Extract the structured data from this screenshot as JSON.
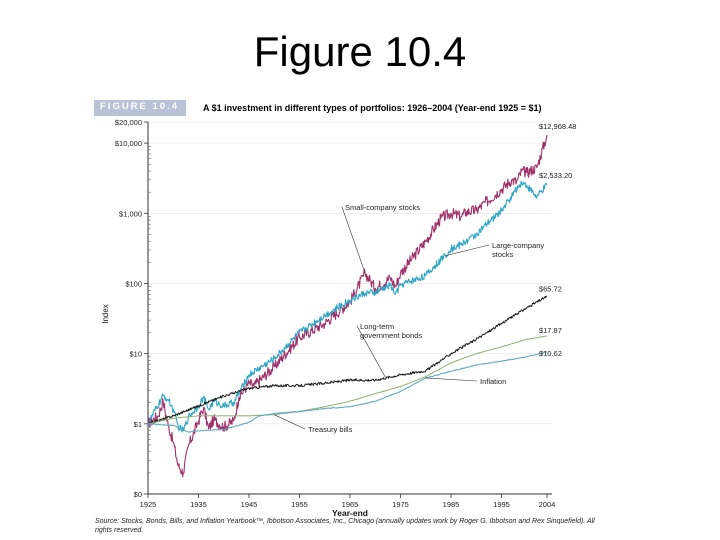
{
  "slide": {
    "title": "Figure 10.4"
  },
  "figure": {
    "label": "FIGURE 10.4",
    "caption": "A $1 investment in different types of portfolios: 1926–2004 (Year-end 1925 = $1)",
    "source": "Source: Stocks, Bonds, Bills, and Inflation Yearbook™, Ibbotson Associates, Inc., Chicago (annually updates work by Roger G. Ibbotson and Rex Sinquefield). All rights reserved."
  },
  "colors": {
    "small_company": "#a0306a",
    "large_company": "#2ea6c8",
    "lt_gov_bonds": "#1a1a1a",
    "inflation": "#5aa8c0",
    "treasury_bills": "#8fb070"
  },
  "chart_data": {
    "type": "line",
    "yscale": "log",
    "title": "A $1 investment in different types of portfolios: 1926–2004 (Year-end 1925 = $1)",
    "xlabel": "Year-end",
    "ylabel": "Index",
    "xlim": [
      1925,
      2005
    ],
    "ylim": [
      0.1,
      20000
    ],
    "x_ticks": [
      "1925",
      "1935",
      "1945",
      "1955",
      "1965",
      "1975",
      "1985",
      "1995",
      "2004"
    ],
    "y_ticks": [
      {
        "value": 20000,
        "label": "$20,000"
      },
      {
        "value": 10000,
        "label": "$10,000"
      },
      {
        "value": 1000,
        "label": "$1,000"
      },
      {
        "value": 100,
        "label": "$100"
      },
      {
        "value": 10,
        "label": "$10"
      },
      {
        "value": 1,
        "label": "$1"
      },
      {
        "value": 0.1,
        "label": "$0"
      }
    ],
    "series": [
      {
        "key": "small_company",
        "name": "Small-company stocks",
        "end_label": "$12,968.48",
        "x": [
          1925,
          1927,
          1928,
          1929,
          1930,
          1931,
          1932,
          1933,
          1935,
          1936,
          1937,
          1938,
          1940,
          1942,
          1943,
          1945,
          1946,
          1950,
          1955,
          1960,
          1965,
          1968,
          1969,
          1970,
          1973,
          1974,
          1975,
          1980,
          1983,
          1985,
          1987,
          1988,
          1990,
          1995,
          1997,
          1998,
          1999,
          2000,
          2002,
          2004
        ],
        "y": [
          1,
          1.3,
          2.1,
          0.95,
          0.55,
          0.25,
          0.2,
          0.48,
          1.1,
          1.7,
          0.85,
          1.15,
          0.9,
          1.1,
          2.4,
          3.8,
          3.5,
          6.5,
          17,
          27,
          55,
          140,
          110,
          85,
          120,
          90,
          140,
          400,
          850,
          1000,
          900,
          1050,
          1100,
          2200,
          3000,
          2800,
          4000,
          3800,
          4500,
          12968.48
        ]
      },
      {
        "key": "large_company",
        "name": "Large-company stocks",
        "end_label": "$2,533.20",
        "x": [
          1925,
          1928,
          1929,
          1930,
          1931,
          1932,
          1933,
          1935,
          1936,
          1937,
          1938,
          1940,
          1942,
          1945,
          1950,
          1955,
          1960,
          1965,
          1968,
          1970,
          1973,
          1974,
          1975,
          1980,
          1985,
          1987,
          1990,
          1995,
          1999,
          2000,
          2002,
          2004
        ],
        "y": [
          1,
          2.5,
          2.2,
          1.6,
          0.9,
          0.8,
          1.25,
          1.8,
          2.4,
          1.6,
          2.1,
          1.8,
          2.0,
          5.0,
          8.5,
          20,
          35,
          58,
          73,
          74,
          95,
          70,
          95,
          130,
          310,
          360,
          500,
          1100,
          2800,
          2500,
          1700,
          2533.2
        ]
      },
      {
        "key": "lt_gov_bonds",
        "name": "Long-term government bonds",
        "end_label": "$65.72",
        "x": [
          1925,
          1930,
          1935,
          1940,
          1945,
          1950,
          1955,
          1960,
          1965,
          1970,
          1975,
          1980,
          1985,
          1990,
          1995,
          2000,
          2004
        ],
        "y": [
          1,
          1.3,
          1.8,
          2.5,
          3.2,
          3.5,
          3.5,
          3.8,
          4.2,
          4.2,
          5.0,
          5.7,
          10,
          16,
          27,
          45,
          65.72
        ]
      },
      {
        "key": "treasury_bills",
        "name": "Treasury bills",
        "end_label": "$17.87",
        "x": [
          1925,
          1930,
          1935,
          1940,
          1945,
          1950,
          1955,
          1960,
          1965,
          1970,
          1975,
          1980,
          1985,
          1990,
          1995,
          2000,
          2004
        ],
        "y": [
          1,
          1.2,
          1.3,
          1.3,
          1.3,
          1.35,
          1.5,
          1.75,
          2.1,
          2.7,
          3.4,
          4.7,
          7.4,
          10,
          12.5,
          16,
          17.87
        ]
      },
      {
        "key": "inflation",
        "name": "Inflation",
        "end_label": "$10.62",
        "x": [
          1925,
          1930,
          1933,
          1935,
          1940,
          1945,
          1947,
          1950,
          1955,
          1960,
          1965,
          1970,
          1975,
          1980,
          1985,
          1990,
          1995,
          2000,
          2004
        ],
        "y": [
          1,
          0.95,
          0.76,
          0.8,
          0.83,
          1.05,
          1.3,
          1.4,
          1.5,
          1.65,
          1.75,
          2.1,
          2.9,
          4.5,
          5.6,
          6.9,
          7.8,
          9.0,
          10.62
        ]
      }
    ],
    "annotations": [
      {
        "series": "small_company",
        "text": "Small-company stocks"
      },
      {
        "series": "large_company",
        "text": "Large-company stocks"
      },
      {
        "series": "lt_gov_bonds",
        "text": "Long-term government bonds"
      },
      {
        "series": "inflation",
        "text": "Inflation"
      },
      {
        "series": "treasury_bills",
        "text": "Treasury bills"
      }
    ]
  }
}
